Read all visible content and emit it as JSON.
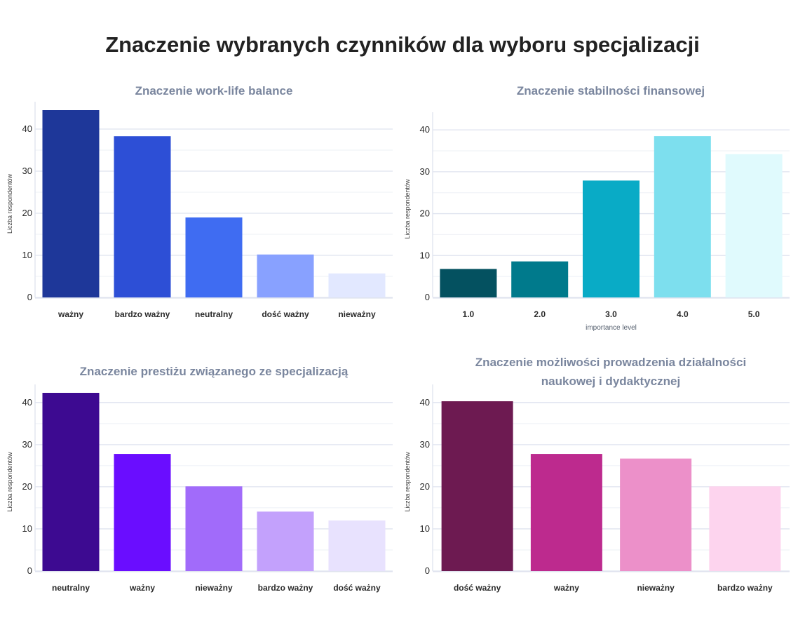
{
  "main_title": "Znaczenie wybranych czynników dla wyboru specjalizacji",
  "chart_data": [
    {
      "type": "bar",
      "title": [
        "Znaczenie work-life balance"
      ],
      "categories": [
        "ważny",
        "bardzo ważny",
        "neutralny",
        "dość ważny",
        "nieważny"
      ],
      "values": [
        44.5,
        38.3,
        19.0,
        10.2,
        5.7
      ],
      "colors": [
        "#1e3799",
        "#2d4fd6",
        "#3f6cf2",
        "#88a1ff",
        "#e2e8ff"
      ],
      "xlabel": "",
      "ylabel": "Liczba respondentów",
      "yticks": [
        0,
        10,
        20,
        30,
        40
      ],
      "ylim": [
        0,
        44.5
      ],
      "grid": true
    },
    {
      "type": "bar",
      "title": [
        "Znaczenie stabilności finansowej"
      ],
      "categories": [
        "1.0",
        "2.0",
        "3.0",
        "4.0",
        "5.0"
      ],
      "values": [
        6.8,
        8.6,
        27.9,
        38.5,
        34.2
      ],
      "colors": [
        "#045160",
        "#007a8c",
        "#09abc6",
        "#7ddfee",
        "#e0fafd"
      ],
      "xlabel": "importance level",
      "ylabel": "Liczba respondentów",
      "yticks": [
        0,
        10,
        20,
        30,
        40
      ],
      "ylim": [
        0,
        42.2
      ],
      "grid": true
    },
    {
      "type": "bar",
      "title": [
        "Znaczenie prestiżu związanego ze specjalizacją"
      ],
      "categories": [
        "neutralny",
        "ważny",
        "nieważny",
        "bardzo ważny",
        "dość ważny"
      ],
      "values": [
        42.3,
        27.8,
        20.1,
        14.1,
        12.0
      ],
      "colors": [
        "#3d0a91",
        "#6a0dff",
        "#a16bfa",
        "#c3a1fc",
        "#e8e2fe"
      ],
      "xlabel": "",
      "ylabel": "Liczba respondentów",
      "yticks": [
        0,
        10,
        20,
        30,
        40
      ],
      "ylim": [
        0,
        42.3
      ],
      "grid": true
    },
    {
      "type": "bar",
      "title": [
        "Znaczenie możliwości prowadzenia działalności",
        "naukowej i dydaktycznej"
      ],
      "categories": [
        "dość ważny",
        "ważny",
        "nieważny",
        "bardzo ważny"
      ],
      "values": [
        40.3,
        27.8,
        26.7,
        20.1
      ],
      "colors": [
        "#6d1a51",
        "#bd2a8e",
        "#ec90c9",
        "#fdd4ee"
      ],
      "xlabel": "",
      "ylabel": "Liczba respondentów",
      "yticks": [
        0,
        10,
        20,
        30,
        40
      ],
      "ylim": [
        0,
        42.3
      ],
      "grid": true
    }
  ]
}
